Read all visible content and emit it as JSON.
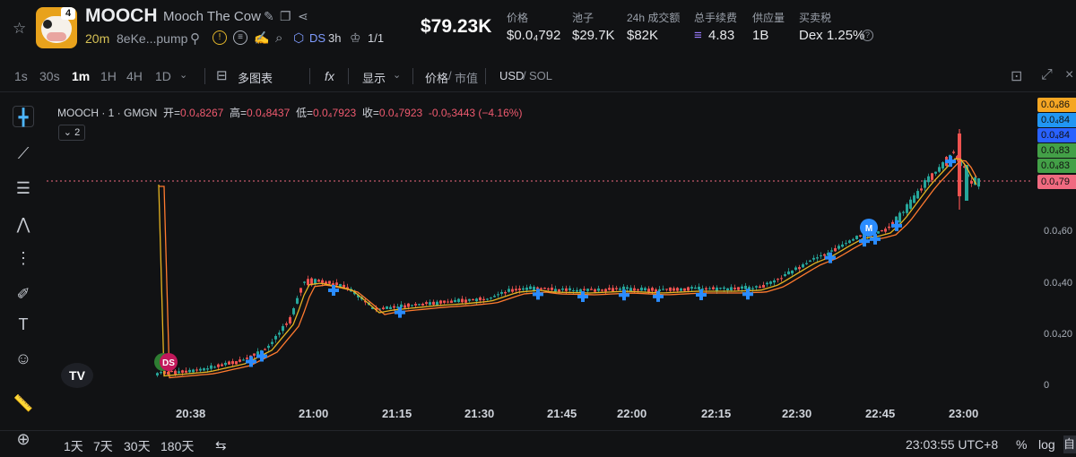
{
  "token": {
    "symbol": "MOOCH",
    "name": "Mooch The Cow",
    "age": "20m",
    "address": "8eKe...pump",
    "logo_badge": "4",
    "ds_label": "DS",
    "ds_age": "3h",
    "holders_ratio": "1/1"
  },
  "price_main": "$79.23K",
  "stats": [
    {
      "label": "价格",
      "value": "$0.0₄792"
    },
    {
      "label": "池子",
      "value": "$29.7K"
    },
    {
      "label": "24h 成交额",
      "value": "$82K"
    },
    {
      "label": "总手续费",
      "value": "4.83"
    },
    {
      "label": "供应量",
      "value": "1B"
    },
    {
      "label": "买卖税",
      "value": "Dex 1.25%"
    }
  ],
  "timeframes": [
    "1s",
    "30s",
    "1m",
    "1H",
    "4H",
    "1D"
  ],
  "active_timeframe": "1m",
  "toolbar": {
    "multi_chart": "多图表",
    "fx": "fx",
    "display": "显示",
    "price_label": "价格",
    "mcap_label": "市值",
    "usd": "USD",
    "sol": "SOL"
  },
  "legend": {
    "title": "MOOCH · 1 · GMGN",
    "open_k": "开=",
    "open_v": "0.0₄8267",
    "high_k": "高=",
    "high_v": "0.0₄8437",
    "low_k": "低=",
    "low_v": "0.0₄7923",
    "close_k": "收=",
    "close_v": "0.0₄7923",
    "change": "-0.0₅3443 (−4.16%)",
    "collapse": "2"
  },
  "price_tags": [
    {
      "label": "0.0₄86",
      "color": "#f5a623"
    },
    {
      "label": "0.0₄84",
      "color": "#2196f3"
    },
    {
      "label": "0.0₄84",
      "color": "#2962ff"
    },
    {
      "label": "0.0₄83",
      "color": "#43a047"
    },
    {
      "label": "0.0₄83",
      "color": "#43a047"
    },
    {
      "label": "0.0₄79",
      "color": "#f06a80"
    }
  ],
  "price_ticks": [
    "0.0₄60",
    "0.0₄40",
    "0.0₄20",
    "0"
  ],
  "x_ticks": [
    "20:38",
    "21:00",
    "21:15",
    "21:30",
    "21:45",
    "22:00",
    "22:15",
    "22:30",
    "22:45",
    "23:00"
  ],
  "markers": {
    "ds": "DS",
    "m": "M"
  },
  "bottom": {
    "ranges": [
      "1天",
      "7天",
      "30天",
      "180天"
    ],
    "clock": "23:03:55 UTC+8",
    "pct": "%",
    "log": "log",
    "auto": "自"
  },
  "colors": {
    "up": "#26a69a",
    "down": "#ef5350",
    "ma_fast": "#e6b422",
    "ma_slow": "#ff7a2f",
    "buy_marker": "#2a8cff"
  }
}
